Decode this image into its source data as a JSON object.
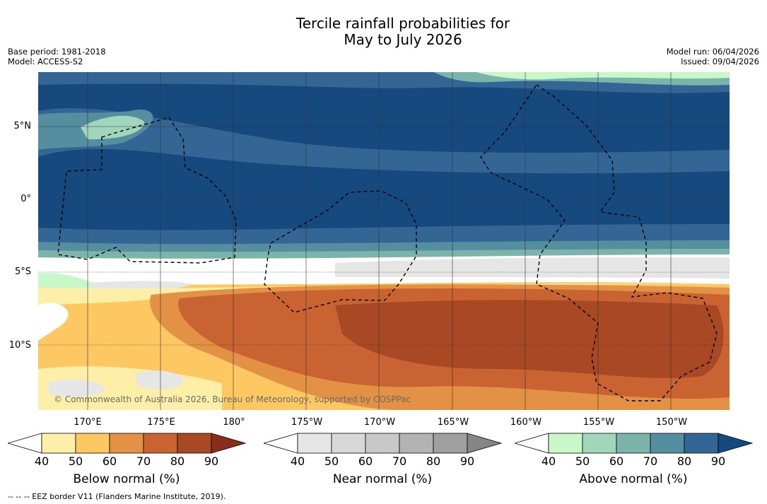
{
  "title_line1": "Tercile rainfall probabilities for",
  "title_line2": "May to July 2026",
  "meta": {
    "base_period": "Base period: 1981-2018",
    "model": "Model: ACCESS-S2",
    "model_run": "Model run: 06/04/2026",
    "issued": "Issued: 09/04/2026"
  },
  "lat_labels": [
    "5°N",
    "0°",
    "5°S",
    "10°S"
  ],
  "lon_labels": [
    "170°E",
    "175°E",
    "180°",
    "175°W",
    "170°W",
    "165°W",
    "160°W",
    "155°W",
    "150°W"
  ],
  "copyright": "© Commonwealth of Australia 2026, Bureau of Meteorology, supported by COSPPac",
  "colorbars": [
    {
      "label": "Below normal (%)",
      "ticks": [
        "40",
        "50",
        "60",
        "70",
        "80",
        "90"
      ],
      "colors": [
        "#ffffff",
        "#fdeea8",
        "#fdc761",
        "#e39144",
        "#c96332",
        "#a84825",
        "#8a2e1c"
      ]
    },
    {
      "label": "Near normal (%)",
      "ticks": [
        "40",
        "50",
        "60",
        "70",
        "80",
        "90"
      ],
      "colors": [
        "#ffffff",
        "#e6e6e6",
        "#d8d8d8",
        "#c8c8c8",
        "#b3b3b3",
        "#9f9f9f",
        "#868686"
      ]
    },
    {
      "label": "Above normal (%)",
      "ticks": [
        "40",
        "50",
        "60",
        "70",
        "80",
        "90"
      ],
      "colors": [
        "#ffffff",
        "#c8f8c8",
        "#a2d6bc",
        "#7cb4ac",
        "#558e9e",
        "#336694",
        "#16497e"
      ]
    }
  ],
  "footnote": "--  --  -- EEZ border V11 (Flanders Marine Institute, 2019)."
}
